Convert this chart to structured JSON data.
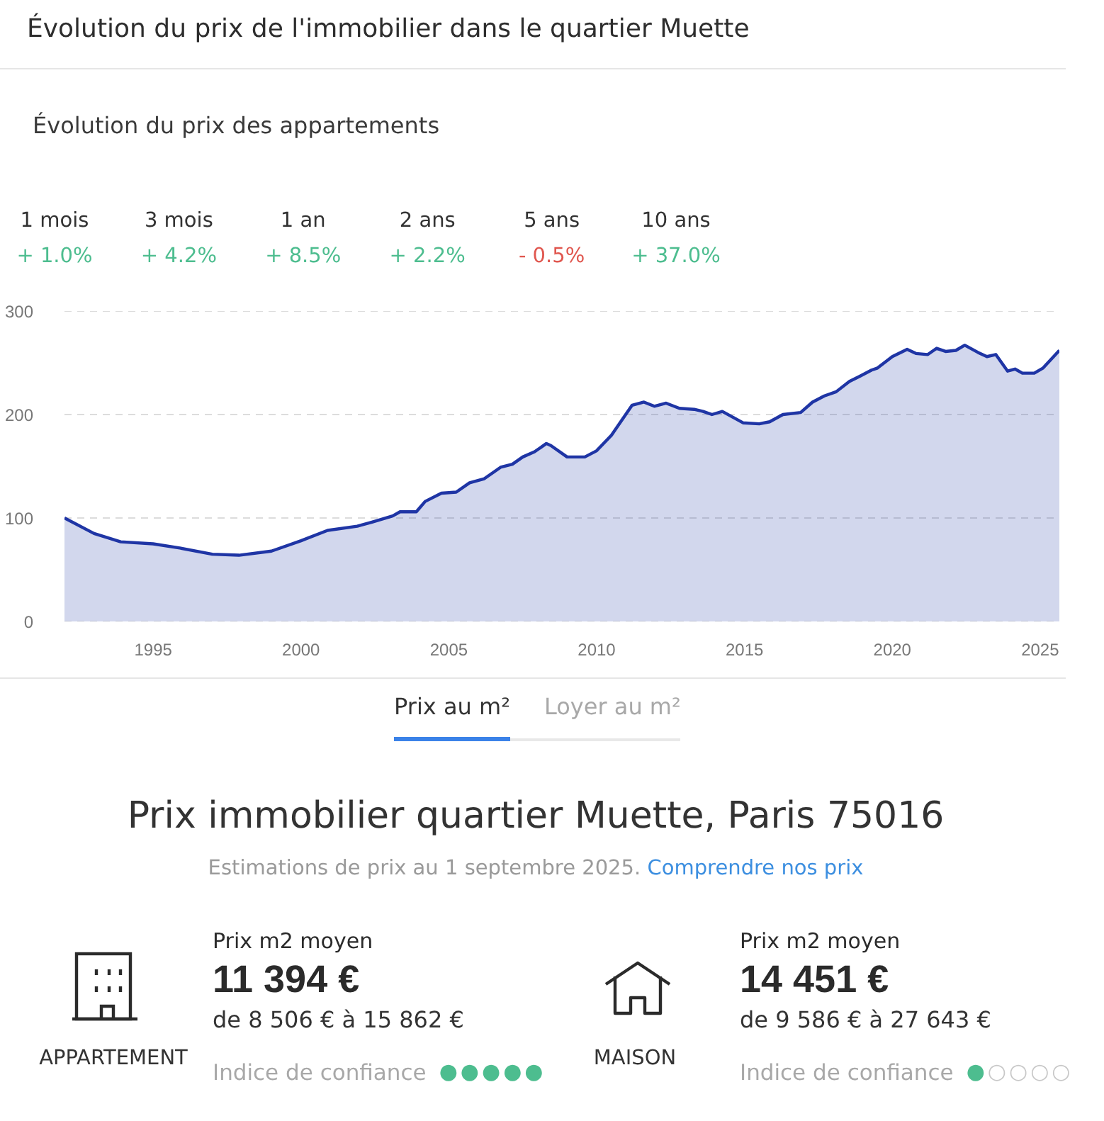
{
  "chart_data": [
    {
      "type": "other",
      "title": "Évolution du prix de l'immobilier dans le quartier Muette",
      "subtitle": "Évolution du prix des appartements",
      "categories": [
        "1 mois",
        "3 mois",
        "1 an",
        "2 ans",
        "5 ans",
        "10 ans"
      ],
      "values": [
        1.0,
        4.2,
        8.5,
        2.2,
        -0.5,
        37.0
      ],
      "value_labels": [
        "+ 1.0%",
        "+ 4.2%",
        "+ 8.5%",
        "+ 2.2%",
        "- 0.5%",
        "+ 37.0%"
      ],
      "colors": [
        "#4dbd8f",
        "#4dbd8f",
        "#4dbd8f",
        "#4dbd8f",
        "#e0574f",
        "#4dbd8f"
      ]
    },
    {
      "type": "area",
      "x": [
        1992.0,
        1993.0,
        1993.9,
        1995.0,
        1995.9,
        1997.0,
        1997.9,
        1999.0,
        2000.0,
        2000.9,
        2001.9,
        2002.4,
        2003.1,
        2003.35,
        2003.9,
        2004.2,
        2004.75,
        2005.25,
        2005.7,
        2006.2,
        2006.75,
        2007.15,
        2007.5,
        2007.9,
        2008.3,
        2008.45,
        2009.0,
        2009.6,
        2010.0,
        2010.5,
        2011.2,
        2011.6,
        2011.95,
        2012.35,
        2012.8,
        2013.3,
        2013.6,
        2013.9,
        2014.25,
        2014.95,
        2015.5,
        2015.85,
        2016.3,
        2016.9,
        2017.3,
        2017.7,
        2018.1,
        2018.55,
        2018.9,
        2019.3,
        2019.5,
        2020.0,
        2020.5,
        2020.8,
        2021.2,
        2021.5,
        2021.8,
        2022.15,
        2022.45,
        2022.9,
        2023.2,
        2023.5,
        2023.9,
        2024.15,
        2024.4,
        2024.8,
        2025.1,
        2025.65
      ],
      "values": [
        100,
        85,
        77,
        75,
        71,
        65,
        64,
        68,
        78,
        88,
        92,
        96,
        102,
        106,
        106,
        116,
        124,
        125,
        134,
        138,
        149,
        152,
        159,
        164,
        172,
        170,
        159,
        159,
        165,
        180,
        209,
        212,
        208,
        211,
        206,
        205,
        203,
        200,
        203,
        192,
        191,
        193,
        200,
        202,
        212,
        218,
        222,
        232,
        237,
        243,
        245,
        256,
        263,
        259,
        258,
        264,
        261,
        262,
        267,
        260,
        256,
        258,
        242,
        244,
        240,
        240,
        245,
        262
      ],
      "color": "#1f35a5",
      "xlim": [
        1992,
        2025.65
      ],
      "ylim": [
        0,
        300
      ],
      "xticks": [
        1995,
        2000,
        2005,
        2010,
        2015,
        2020,
        2025
      ],
      "yticks": [
        0,
        100,
        200,
        300
      ],
      "grid": "y",
      "annotations": [
        "Prix au m²",
        "Loyer au m²"
      ]
    },
    {
      "type": "other",
      "title": "Prix immobilier quartier Muette, Paris 75016",
      "subtitle": "Estimations de prix au 1 septembre 2025.",
      "annotations": [
        "Comprendre nos prix",
        "de 8 506 € à 15 862 €",
        "de 9 586 € à 27 643 €",
        "Indice de confiance",
        "●●●●●",
        "●○○○○"
      ],
      "categories": [
        "APPARTEMENT",
        "MAISON"
      ],
      "ylabel": "Prix m2 moyen",
      "values": [
        11394,
        14451
      ],
      "value_labels": [
        "11 394 €",
        "14 451 €"
      ]
    }
  ]
}
